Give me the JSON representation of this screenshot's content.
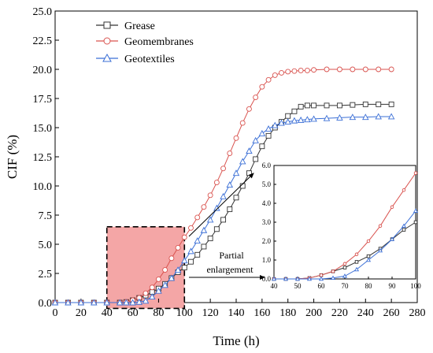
{
  "chart_data": [
    {
      "type": "line",
      "title": "",
      "xlabel": "Time (h)",
      "ylabel": "CIF (%)",
      "xlim": [
        0,
        280
      ],
      "ylim": [
        0,
        25
      ],
      "xticks": [
        0,
        20,
        40,
        60,
        80,
        100,
        120,
        140,
        160,
        180,
        200,
        220,
        240,
        260,
        280
      ],
      "yticks": [
        0.0,
        2.5,
        5.0,
        7.5,
        10.0,
        12.5,
        15.0,
        17.5,
        20.0,
        22.5,
        25.0
      ],
      "ytick_labels": [
        "0.0",
        "2.5",
        "5.0",
        "7.5",
        "10.0",
        "12.5",
        "15.0",
        "17.5",
        "20.0",
        "22.5",
        "25.0"
      ],
      "grid": false,
      "legend_position": "top-left",
      "series": [
        {
          "name": "Grease",
          "color": "#333333",
          "marker": "square",
          "x": [
            0,
            10,
            20,
            30,
            40,
            50,
            55,
            60,
            65,
            70,
            75,
            80,
            85,
            90,
            95,
            100,
            105,
            110,
            115,
            120,
            125,
            130,
            135,
            140,
            145,
            150,
            155,
            160,
            165,
            170,
            175,
            180,
            185,
            190,
            195,
            200,
            210,
            220,
            230,
            240,
            250,
            260
          ],
          "y": [
            0,
            0,
            0,
            0,
            0,
            0,
            0.05,
            0.2,
            0.4,
            0.6,
            0.9,
            1.2,
            1.6,
            2.1,
            2.6,
            3.0,
            3.5,
            4.1,
            4.8,
            5.5,
            6.3,
            7.1,
            8.0,
            9.0,
            10.0,
            11.1,
            12.3,
            13.4,
            14.3,
            15.0,
            15.5,
            16.0,
            16.4,
            16.8,
            16.9,
            16.9,
            16.9,
            16.9,
            16.95,
            17.0,
            17.0,
            17.0
          ]
        },
        {
          "name": "Geomembranes",
          "color": "#d9534f",
          "marker": "circle",
          "x": [
            0,
            10,
            20,
            30,
            40,
            50,
            55,
            60,
            65,
            70,
            75,
            80,
            85,
            90,
            95,
            100,
            105,
            110,
            115,
            120,
            125,
            130,
            135,
            140,
            145,
            150,
            155,
            160,
            165,
            170,
            175,
            180,
            185,
            190,
            195,
            200,
            210,
            220,
            230,
            240,
            250,
            260
          ],
          "y": [
            0,
            0,
            0,
            0,
            0,
            0,
            0.05,
            0.2,
            0.4,
            0.8,
            1.3,
            2.0,
            2.8,
            3.8,
            4.7,
            5.6,
            6.4,
            7.3,
            8.2,
            9.2,
            10.3,
            11.5,
            12.8,
            14.1,
            15.4,
            16.6,
            17.6,
            18.5,
            19.1,
            19.5,
            19.7,
            19.8,
            19.85,
            19.9,
            19.9,
            19.95,
            20.0,
            20.0,
            20.0,
            20.0,
            20.0,
            20.0
          ]
        },
        {
          "name": "Geotextiles",
          "color": "#3b6fd6",
          "marker": "triangle",
          "x": [
            0,
            10,
            20,
            30,
            40,
            50,
            55,
            60,
            65,
            70,
            75,
            80,
            85,
            90,
            95,
            100,
            105,
            110,
            115,
            120,
            125,
            130,
            135,
            140,
            145,
            150,
            155,
            160,
            165,
            170,
            175,
            180,
            185,
            190,
            195,
            200,
            210,
            220,
            230,
            240,
            250,
            260
          ],
          "y": [
            0,
            0,
            0,
            0,
            0,
            0,
            0,
            0,
            0.05,
            0.15,
            0.5,
            1.0,
            1.5,
            2.1,
            2.8,
            3.6,
            4.4,
            5.3,
            6.2,
            7.1,
            8.1,
            9.1,
            10.1,
            11.1,
            12.1,
            13.0,
            13.9,
            14.5,
            14.9,
            15.2,
            15.4,
            15.5,
            15.6,
            15.65,
            15.7,
            15.75,
            15.8,
            15.85,
            15.9,
            15.9,
            15.95,
            15.95
          ]
        }
      ],
      "annotations": {
        "highlight_box": {
          "x_range": [
            40,
            100
          ],
          "y_range": [
            0,
            6.5
          ],
          "color": "#f4a6a6"
        },
        "arrow_text_line1": "Partial",
        "arrow_text_line2": "enlargement"
      }
    },
    {
      "type": "line",
      "title": "",
      "xlabel": "",
      "ylabel": "",
      "xlim": [
        40,
        100
      ],
      "ylim": [
        0,
        6.0
      ],
      "xticks": [
        40,
        50,
        60,
        70,
        80,
        90,
        100
      ],
      "yticks": [
        0.0,
        1.0,
        2.0,
        3.0,
        4.0,
        5.0,
        6.0
      ],
      "ytick_labels": [
        "0.0",
        "1.0",
        "2.0",
        "3.0",
        "4.0",
        "5.0",
        "6.0"
      ],
      "grid": false,
      "series": [
        {
          "color": "#333333",
          "marker": "square",
          "x": [
            40,
            45,
            50,
            55,
            60,
            65,
            70,
            75,
            80,
            85,
            90,
            95,
            100
          ],
          "y": [
            0,
            0,
            0,
            0.05,
            0.2,
            0.4,
            0.6,
            0.9,
            1.2,
            1.6,
            2.1,
            2.6,
            3.0
          ]
        },
        {
          "color": "#d9534f",
          "marker": "circle",
          "x": [
            40,
            45,
            50,
            55,
            60,
            65,
            70,
            75,
            80,
            85,
            90,
            95,
            100
          ],
          "y": [
            0,
            0,
            0,
            0.05,
            0.2,
            0.4,
            0.8,
            1.3,
            2.0,
            2.8,
            3.8,
            4.7,
            5.6
          ]
        },
        {
          "color": "#3b6fd6",
          "marker": "triangle",
          "x": [
            40,
            45,
            50,
            55,
            60,
            65,
            70,
            75,
            80,
            85,
            90,
            95,
            100
          ],
          "y": [
            0,
            0,
            0,
            0,
            0,
            0.05,
            0.15,
            0.5,
            1.0,
            1.5,
            2.1,
            2.8,
            3.6
          ]
        }
      ]
    }
  ]
}
